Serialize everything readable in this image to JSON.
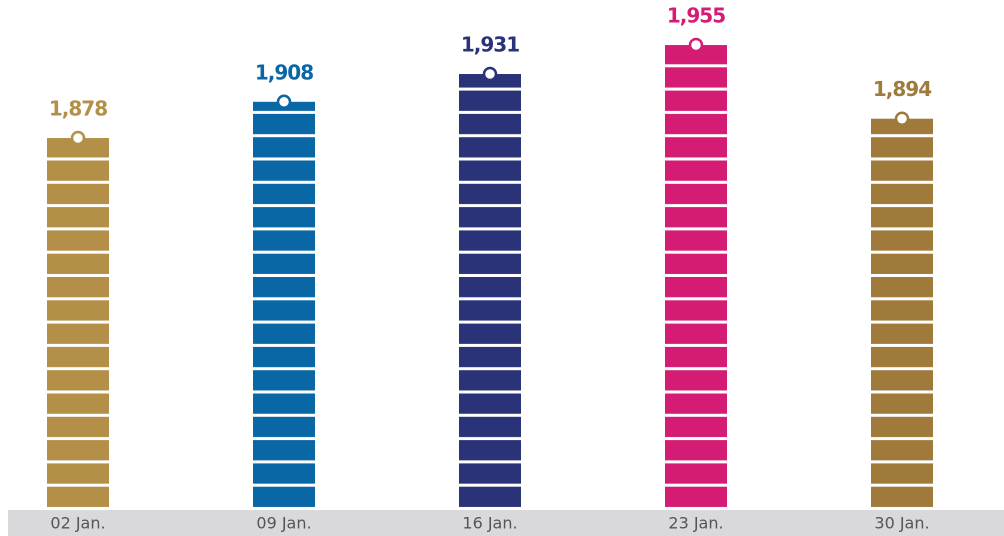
{
  "chart_data": {
    "type": "bar",
    "categories": [
      "02 Jan.",
      "09 Jan.",
      "16 Jan.",
      "23 Jan.",
      "30 Jan."
    ],
    "values": [
      1878,
      1908,
      1931,
      1955,
      1894
    ],
    "value_labels": [
      "1,878",
      "1,908",
      "1,931",
      "1,955",
      "1,894"
    ],
    "colors": [
      "#b38f48",
      "#0a67a6",
      "#2b3378",
      "#d41c74",
      "#a07a3a"
    ],
    "ylim": [
      1570,
      1960
    ]
  }
}
